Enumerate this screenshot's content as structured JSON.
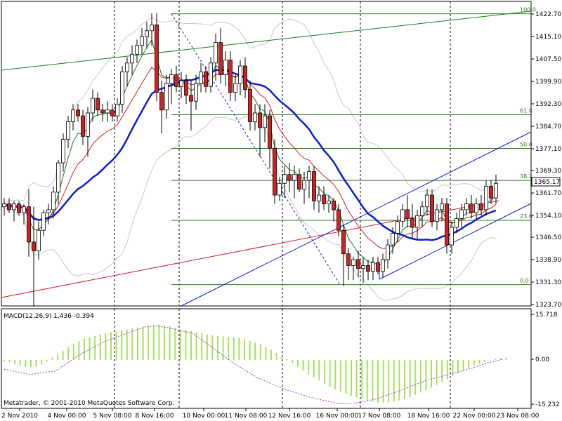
{
  "chart_data": [
    {
      "type": "candlestick",
      "panel": "price",
      "current_price": "1365.17",
      "ylim": [
        1320,
        1427
      ],
      "y_ticks": [
        "1422.70",
        "1415.10",
        "1407.50",
        "1399.90",
        "1392.30",
        "1384.70",
        "1377.10",
        "1369.30",
        "1361.70",
        "1354.10",
        "1346.50",
        "1338.90",
        "1331.30",
        "1323.70"
      ],
      "x_ticks": [
        "2 Nov 2010",
        "4 Nov 00:00",
        "5 Nov 08:00",
        "8 Nov 16:00",
        "10 Nov 00:00",
        "11 Nov 08:00",
        "12 Nov 16:00",
        "16 Nov 00:00",
        "17 Nov 08:00",
        "18 Nov 16:00",
        "22 Nov 00:00",
        "23 Nov 08:00"
      ],
      "fibonacci_levels": [
        {
          "label": "100.0",
          "price": 1422.8
        },
        {
          "label": "61.8",
          "price": 1388.4
        },
        {
          "label": "50.0",
          "price": 1376.9
        },
        {
          "label": "38.2",
          "price": 1366.0
        },
        {
          "label": "23.6",
          "price": 1352.4
        },
        {
          "label": "0.0",
          "price": 1330.5
        }
      ],
      "candles": [
        {
          "o": 1357,
          "h": 1360,
          "l": 1354,
          "c": 1358
        },
        {
          "o": 1358,
          "h": 1360,
          "l": 1355,
          "c": 1356
        },
        {
          "o": 1356,
          "h": 1359,
          "l": 1352,
          "c": 1358
        },
        {
          "o": 1358,
          "h": 1359,
          "l": 1354,
          "c": 1355
        },
        {
          "o": 1355,
          "h": 1358,
          "l": 1351,
          "c": 1357
        },
        {
          "o": 1357,
          "h": 1363,
          "l": 1340,
          "c": 1345
        },
        {
          "o": 1345,
          "h": 1357,
          "l": 1323,
          "c": 1342
        },
        {
          "o": 1342,
          "h": 1352,
          "l": 1339,
          "c": 1349
        },
        {
          "o": 1349,
          "h": 1356,
          "l": 1347,
          "c": 1355
        },
        {
          "o": 1355,
          "h": 1358,
          "l": 1351,
          "c": 1356
        },
        {
          "o": 1356,
          "h": 1364,
          "l": 1353,
          "c": 1362
        },
        {
          "o": 1362,
          "h": 1373,
          "l": 1358,
          "c": 1372
        },
        {
          "o": 1372,
          "h": 1382,
          "l": 1369,
          "c": 1380
        },
        {
          "o": 1380,
          "h": 1388,
          "l": 1377,
          "c": 1386
        },
        {
          "o": 1386,
          "h": 1392,
          "l": 1383,
          "c": 1390
        },
        {
          "o": 1390,
          "h": 1392,
          "l": 1386,
          "c": 1388
        },
        {
          "o": 1388,
          "h": 1390,
          "l": 1378,
          "c": 1381
        },
        {
          "o": 1381,
          "h": 1391,
          "l": 1374,
          "c": 1389
        },
        {
          "o": 1389,
          "h": 1397,
          "l": 1386,
          "c": 1394
        },
        {
          "o": 1394,
          "h": 1396,
          "l": 1388,
          "c": 1390
        },
        {
          "o": 1390,
          "h": 1392,
          "l": 1386,
          "c": 1389
        },
        {
          "o": 1389,
          "h": 1393,
          "l": 1386,
          "c": 1390
        },
        {
          "o": 1390,
          "h": 1392,
          "l": 1386,
          "c": 1388
        },
        {
          "o": 1388,
          "h": 1394,
          "l": 1386,
          "c": 1392
        },
        {
          "o": 1392,
          "h": 1405,
          "l": 1389,
          "c": 1403
        },
        {
          "o": 1403,
          "h": 1408,
          "l": 1398,
          "c": 1406
        },
        {
          "o": 1406,
          "h": 1412,
          "l": 1402,
          "c": 1409
        },
        {
          "o": 1409,
          "h": 1414,
          "l": 1406,
          "c": 1412
        },
        {
          "o": 1412,
          "h": 1418,
          "l": 1409,
          "c": 1415
        },
        {
          "o": 1415,
          "h": 1420,
          "l": 1411,
          "c": 1417
        },
        {
          "o": 1417,
          "h": 1423,
          "l": 1412,
          "c": 1419
        },
        {
          "o": 1419,
          "h": 1423,
          "l": 1393,
          "c": 1396
        },
        {
          "o": 1396,
          "h": 1400,
          "l": 1382,
          "c": 1390
        },
        {
          "o": 1390,
          "h": 1402,
          "l": 1387,
          "c": 1399
        },
        {
          "o": 1399,
          "h": 1404,
          "l": 1392,
          "c": 1402
        },
        {
          "o": 1402,
          "h": 1405,
          "l": 1396,
          "c": 1398
        },
        {
          "o": 1398,
          "h": 1403,
          "l": 1394,
          "c": 1400
        },
        {
          "o": 1400,
          "h": 1402,
          "l": 1392,
          "c": 1395
        },
        {
          "o": 1395,
          "h": 1400,
          "l": 1383,
          "c": 1393
        },
        {
          "o": 1393,
          "h": 1402,
          "l": 1390,
          "c": 1399
        },
        {
          "o": 1399,
          "h": 1406,
          "l": 1396,
          "c": 1403
        },
        {
          "o": 1403,
          "h": 1405,
          "l": 1396,
          "c": 1398
        },
        {
          "o": 1398,
          "h": 1408,
          "l": 1396,
          "c": 1406
        },
        {
          "o": 1406,
          "h": 1416,
          "l": 1400,
          "c": 1413
        },
        {
          "o": 1413,
          "h": 1418,
          "l": 1399,
          "c": 1402
        },
        {
          "o": 1402,
          "h": 1410,
          "l": 1398,
          "c": 1407
        },
        {
          "o": 1407,
          "h": 1410,
          "l": 1393,
          "c": 1396
        },
        {
          "o": 1396,
          "h": 1402,
          "l": 1393,
          "c": 1399
        },
        {
          "o": 1399,
          "h": 1407,
          "l": 1395,
          "c": 1405
        },
        {
          "o": 1405,
          "h": 1408,
          "l": 1394,
          "c": 1397
        },
        {
          "o": 1397,
          "h": 1400,
          "l": 1383,
          "c": 1386
        },
        {
          "o": 1386,
          "h": 1392,
          "l": 1383,
          "c": 1389
        },
        {
          "o": 1389,
          "h": 1392,
          "l": 1374,
          "c": 1384
        },
        {
          "o": 1384,
          "h": 1392,
          "l": 1379,
          "c": 1388
        },
        {
          "o": 1388,
          "h": 1390,
          "l": 1370,
          "c": 1377
        },
        {
          "o": 1377,
          "h": 1380,
          "l": 1358,
          "c": 1361
        },
        {
          "o": 1361,
          "h": 1367,
          "l": 1359,
          "c": 1365
        },
        {
          "o": 1365,
          "h": 1371,
          "l": 1360,
          "c": 1368
        },
        {
          "o": 1368,
          "h": 1372,
          "l": 1362,
          "c": 1366
        },
        {
          "o": 1366,
          "h": 1371,
          "l": 1360,
          "c": 1368
        },
        {
          "o": 1368,
          "h": 1370,
          "l": 1362,
          "c": 1363
        },
        {
          "o": 1363,
          "h": 1369,
          "l": 1358,
          "c": 1366
        },
        {
          "o": 1366,
          "h": 1371,
          "l": 1360,
          "c": 1369
        },
        {
          "o": 1369,
          "h": 1371,
          "l": 1356,
          "c": 1359
        },
        {
          "o": 1359,
          "h": 1364,
          "l": 1355,
          "c": 1361
        },
        {
          "o": 1361,
          "h": 1364,
          "l": 1356,
          "c": 1358
        },
        {
          "o": 1358,
          "h": 1361,
          "l": 1355,
          "c": 1359
        },
        {
          "o": 1359,
          "h": 1360,
          "l": 1352,
          "c": 1356
        },
        {
          "o": 1356,
          "h": 1358,
          "l": 1347,
          "c": 1349
        },
        {
          "o": 1349,
          "h": 1351,
          "l": 1330,
          "c": 1341
        },
        {
          "o": 1341,
          "h": 1343,
          "l": 1332,
          "c": 1337
        },
        {
          "o": 1337,
          "h": 1340,
          "l": 1332,
          "c": 1339
        },
        {
          "o": 1339,
          "h": 1342,
          "l": 1333,
          "c": 1336
        },
        {
          "o": 1336,
          "h": 1340,
          "l": 1331,
          "c": 1337
        },
        {
          "o": 1337,
          "h": 1339,
          "l": 1332,
          "c": 1335
        },
        {
          "o": 1335,
          "h": 1340,
          "l": 1332,
          "c": 1338
        },
        {
          "o": 1338,
          "h": 1340,
          "l": 1334,
          "c": 1335
        },
        {
          "o": 1335,
          "h": 1341,
          "l": 1333,
          "c": 1339
        },
        {
          "o": 1339,
          "h": 1346,
          "l": 1336,
          "c": 1344
        },
        {
          "o": 1344,
          "h": 1350,
          "l": 1341,
          "c": 1348
        },
        {
          "o": 1348,
          "h": 1354,
          "l": 1345,
          "c": 1352
        },
        {
          "o": 1352,
          "h": 1358,
          "l": 1350,
          "c": 1356
        },
        {
          "o": 1356,
          "h": 1361,
          "l": 1350,
          "c": 1353
        },
        {
          "o": 1353,
          "h": 1358,
          "l": 1346,
          "c": 1350
        },
        {
          "o": 1350,
          "h": 1356,
          "l": 1346,
          "c": 1354
        },
        {
          "o": 1354,
          "h": 1359,
          "l": 1350,
          "c": 1357
        },
        {
          "o": 1357,
          "h": 1363,
          "l": 1354,
          "c": 1361
        },
        {
          "o": 1361,
          "h": 1363,
          "l": 1350,
          "c": 1352
        },
        {
          "o": 1352,
          "h": 1358,
          "l": 1349,
          "c": 1356
        },
        {
          "o": 1356,
          "h": 1360,
          "l": 1352,
          "c": 1358
        },
        {
          "o": 1358,
          "h": 1360,
          "l": 1341,
          "c": 1344
        },
        {
          "o": 1344,
          "h": 1352,
          "l": 1341,
          "c": 1350
        },
        {
          "o": 1350,
          "h": 1355,
          "l": 1348,
          "c": 1353
        },
        {
          "o": 1353,
          "h": 1358,
          "l": 1350,
          "c": 1356
        },
        {
          "o": 1356,
          "h": 1360,
          "l": 1354,
          "c": 1358
        },
        {
          "o": 1358,
          "h": 1361,
          "l": 1353,
          "c": 1355
        },
        {
          "o": 1355,
          "h": 1360,
          "l": 1353,
          "c": 1358
        },
        {
          "o": 1358,
          "h": 1361,
          "l": 1354,
          "c": 1356
        },
        {
          "o": 1356,
          "h": 1366,
          "l": 1354,
          "c": 1364
        },
        {
          "o": 1364,
          "h": 1366,
          "l": 1358,
          "c": 1360
        },
        {
          "o": 1360,
          "h": 1368,
          "l": 1358,
          "c": 1365
        }
      ]
    },
    {
      "type": "histogram",
      "panel": "macd",
      "title": "MACD(12,26,9) 1.436 -0.394",
      "ylim": [
        -15.232,
        15.718
      ],
      "y_ticks": [
        "15.718",
        "0.00",
        "-15.232"
      ],
      "histogram": [
        -0.5,
        -0.8,
        -1.5,
        -2.0,
        -2.2,
        -2.5,
        -2.3,
        -1.5,
        -0.5,
        0.8,
        2.0,
        3.2,
        4.5,
        5.6,
        6.5,
        7.2,
        7.8,
        8.3,
        8.8,
        9.2,
        9.6,
        9.9,
        10.2,
        10.5,
        10.8,
        11.2,
        11.5,
        11.8,
        12.0,
        12.2,
        12.0,
        11.6,
        11.0,
        10.6,
        10.3,
        10.0,
        9.6,
        9.2,
        8.8,
        8.5,
        8.3,
        8.1,
        7.9,
        7.8,
        7.6,
        7.2,
        6.6,
        6.0,
        5.4,
        4.5,
        3.5,
        2.4,
        1.3,
        0.2,
        -1.0,
        -2.3,
        -3.6,
        -4.9,
        -6.0,
        -7.1,
        -8.2,
        -9.2,
        -10.1,
        -10.9,
        -11.6,
        -12.3,
        -12.9,
        -13.5,
        -14.0,
        -14.4,
        -14.7,
        -14.8,
        -14.7,
        -14.4,
        -14.0,
        -13.5,
        -12.8,
        -12.0,
        -11.2,
        -10.4,
        -9.5,
        -8.6,
        -7.6,
        -6.6,
        -5.6,
        -4.6,
        -3.7,
        -2.8,
        -2.0,
        -1.3,
        -0.7,
        -0.2,
        0.3,
        0.6,
        0.8
      ],
      "signal_line": [
        [
          0,
          -3.2
        ],
        [
          10,
          -5.0
        ],
        [
          20,
          -3.8
        ],
        [
          30,
          2.0
        ],
        [
          40,
          6.5
        ],
        [
          50,
          9.8
        ],
        [
          56,
          11.5
        ],
        [
          60,
          11.8
        ],
        [
          66,
          10.8
        ],
        [
          74,
          9.2
        ],
        [
          80,
          5.5
        ],
        [
          90,
          -1.0
        ],
        [
          100,
          -6.3
        ],
        [
          110,
          -10.0
        ],
        [
          120,
          -12.8
        ],
        [
          130,
          -14.8
        ],
        [
          136,
          -15.2
        ],
        [
          146,
          -13.5
        ],
        [
          156,
          -10.5
        ],
        [
          166,
          -7.0
        ],
        [
          176,
          -4.8
        ],
        [
          184,
          -2.8
        ],
        [
          190,
          -1.0
        ],
        [
          196,
          0.2
        ]
      ]
    }
  ],
  "footer": {
    "copyright": "Metatrader, © 2001-2010 MetaQuotes Software Corp."
  },
  "colors": {
    "bull": "#ffffff",
    "bear": "#d42020",
    "wick": "#000000",
    "ma_fast": "#1e7a1e",
    "ma_mid": "#d42020",
    "ma_slow": "#0a1ed4",
    "bollinger": "#c8c8c8",
    "fib": "#2e7d1e",
    "channel": "#0a1ed4",
    "macd_bar": "#a8e060",
    "macd_signal": "#a040d0",
    "grid_v": "#000000"
  }
}
